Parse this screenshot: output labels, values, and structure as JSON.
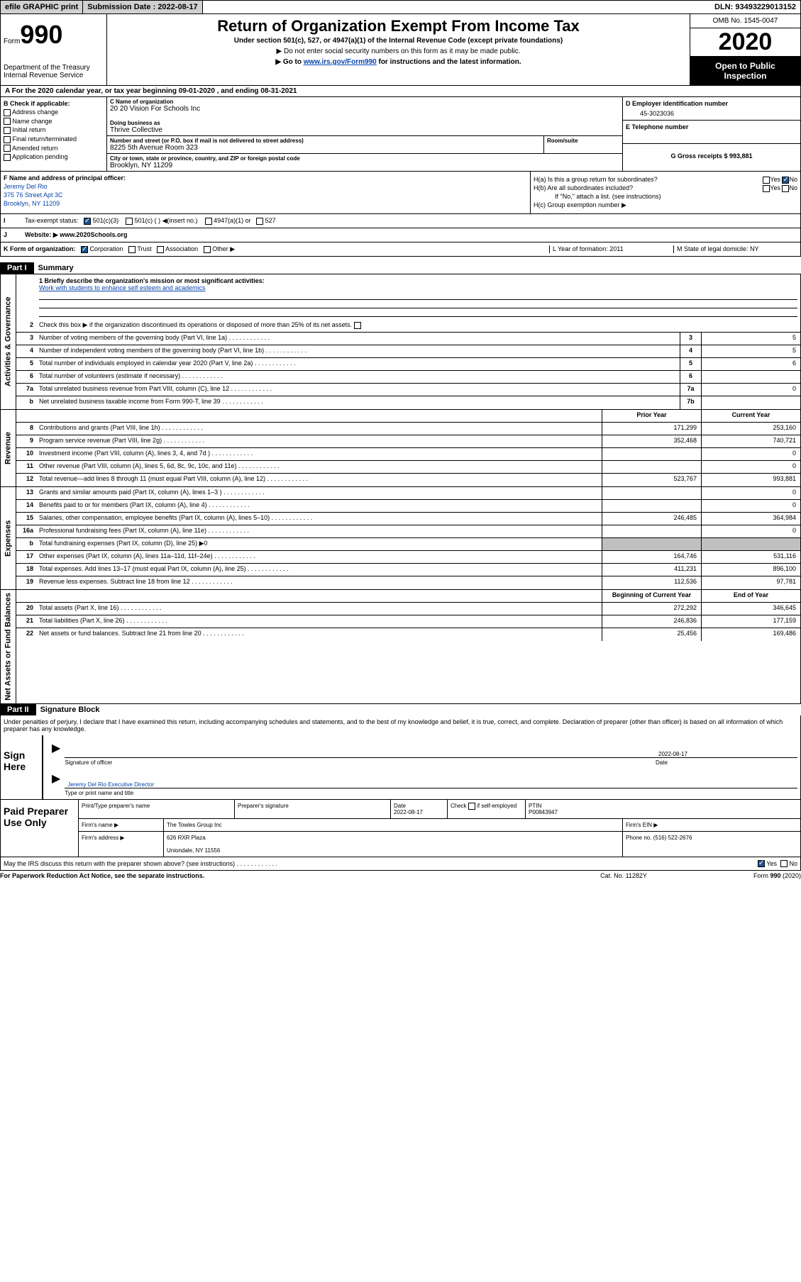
{
  "topbar": {
    "efile": "efile GRAPHIC print",
    "submission_label": "Submission Date : 2022-08-17",
    "dln": "DLN: 93493229013152"
  },
  "header": {
    "form_label": "Form",
    "form_number": "990",
    "dept": "Department of the Treasury Internal Revenue Service",
    "title": "Return of Organization Exempt From Income Tax",
    "subtitle": "Under section 501(c), 527, or 4947(a)(1) of the Internal Revenue Code (except private foundations)",
    "warn1": "▶ Do not enter social security numbers on this form as it may be made public.",
    "warn2_pre": "▶ Go to ",
    "warn2_link": "www.irs.gov/Form990",
    "warn2_post": " for instructions and the latest information.",
    "omb": "OMB No. 1545-0047",
    "year": "2020",
    "open": "Open to Public Inspection"
  },
  "row_a": "A   For the 2020 calendar year, or tax year beginning 09-01-2020    , and ending 08-31-2021",
  "col_b": {
    "header": "B Check if applicable:",
    "items": [
      "Address change",
      "Name change",
      "Initial return",
      "Final return/terminated",
      "Amended return",
      "Application pending"
    ]
  },
  "col_c": {
    "name_label": "C Name of organization",
    "name": "20 20 Vision For Schools Inc",
    "dba_label": "Doing business as",
    "dba": "Thrive Collective",
    "addr_label": "Number and street (or P.O. box if mail is not delivered to street address)",
    "addr": "8225 5th Avenue Room 323",
    "room_label": "Room/suite",
    "city_label": "City or town, state or province, country, and ZIP or foreign postal code",
    "city": "Brooklyn, NY  11209"
  },
  "col_d": {
    "ein_label": "D Employer identification number",
    "ein": "45-3023036",
    "phone_label": "E Telephone number",
    "receipts_label": "G Gross receipts $ 993,881"
  },
  "col_f": {
    "label": "F  Name and address of principal officer:",
    "name": "Jeremy Del Rio",
    "addr1": "375 76 Street Apt 3C",
    "addr2": "Brooklyn, NY  11209"
  },
  "col_h": {
    "ha": "H(a)  Is this a group return for subordinates?",
    "hb": "H(b)  Are all subordinates included?",
    "hb_note": "If \"No,\" attach a list. (see instructions)",
    "hc": "H(c)  Group exemption number ▶",
    "yes": "Yes",
    "no": "No"
  },
  "row_i": {
    "label": "I",
    "text": "Tax-exempt status:",
    "opts": [
      "501(c)(3)",
      "501(c) (  ) ◀(insert no.)",
      "4947(a)(1) or",
      "527"
    ]
  },
  "row_j": {
    "label": "J",
    "text": "Website: ▶  www.2020Schools.org"
  },
  "row_k": {
    "left": "K Form of organization:",
    "opts": [
      "Corporation",
      "Trust",
      "Association",
      "Other ▶"
    ],
    "l": "L Year of formation: 2011",
    "m": "M State of legal domicile: NY"
  },
  "part1": {
    "label": "Part I",
    "title": "Summary",
    "side1": "Activities & Governance",
    "side2": "Revenue",
    "side3": "Expenses",
    "side4": "Net Assets or Fund Balances",
    "line1": "1  Briefly describe the organization's mission or most significant activities:",
    "mission": "Work with students to enhance self esteem and academics",
    "line2": "Check this box ▶     if the organization discontinued its operations or disposed of more than 25% of its net assets.",
    "rows_gov": [
      {
        "n": "3",
        "d": "Number of voting members of the governing body (Part VI, line 1a)",
        "c": "3",
        "v": "5"
      },
      {
        "n": "4",
        "d": "Number of independent voting members of the governing body (Part VI, line 1b)",
        "c": "4",
        "v": "5"
      },
      {
        "n": "5",
        "d": "Total number of individuals employed in calendar year 2020 (Part V, line 2a)",
        "c": "5",
        "v": "6"
      },
      {
        "n": "6",
        "d": "Total number of volunteers (estimate if necessary)",
        "c": "6",
        "v": ""
      },
      {
        "n": "7a",
        "d": "Total unrelated business revenue from Part VIII, column (C), line 12",
        "c": "7a",
        "v": "0"
      },
      {
        "n": "b",
        "d": "Net unrelated business taxable income from Form 990-T, line 39",
        "c": "7b",
        "v": ""
      }
    ],
    "col_headers": {
      "prior": "Prior Year",
      "current": "Current Year"
    },
    "rows_rev": [
      {
        "n": "8",
        "d": "Contributions and grants (Part VIII, line 1h)",
        "p": "171,299",
        "c": "253,160"
      },
      {
        "n": "9",
        "d": "Program service revenue (Part VIII, line 2g)",
        "p": "352,468",
        "c": "740,721"
      },
      {
        "n": "10",
        "d": "Investment income (Part VIII, column (A), lines 3, 4, and 7d )",
        "p": "",
        "c": "0"
      },
      {
        "n": "11",
        "d": "Other revenue (Part VIII, column (A), lines 5, 6d, 8c, 9c, 10c, and 11e)",
        "p": "",
        "c": "0"
      },
      {
        "n": "12",
        "d": "Total revenue—add lines 8 through 11 (must equal Part VIII, column (A), line 12)",
        "p": "523,767",
        "c": "993,881"
      }
    ],
    "rows_exp": [
      {
        "n": "13",
        "d": "Grants and similar amounts paid (Part IX, column (A), lines 1–3 )",
        "p": "",
        "c": "0"
      },
      {
        "n": "14",
        "d": "Benefits paid to or for members (Part IX, column (A), line 4)",
        "p": "",
        "c": "0"
      },
      {
        "n": "15",
        "d": "Salaries, other compensation, employee benefits (Part IX, column (A), lines 5–10)",
        "p": "246,485",
        "c": "364,984"
      },
      {
        "n": "16a",
        "d": "Professional fundraising fees (Part IX, column (A), line 11e)",
        "p": "",
        "c": "0"
      },
      {
        "n": "b",
        "d": "Total fundraising expenses (Part IX, column (D), line 25) ▶0",
        "p": "shaded",
        "c": "shaded"
      },
      {
        "n": "17",
        "d": "Other expenses (Part IX, column (A), lines 11a–11d, 11f–24e)",
        "p": "164,746",
        "c": "531,116"
      },
      {
        "n": "18",
        "d": "Total expenses. Add lines 13–17 (must equal Part IX, column (A), line 25)",
        "p": "411,231",
        "c": "896,100"
      },
      {
        "n": "19",
        "d": "Revenue less expenses. Subtract line 18 from line 12",
        "p": "112,536",
        "c": "97,781"
      }
    ],
    "col_headers2": {
      "prior": "Beginning of Current Year",
      "current": "End of Year"
    },
    "rows_net": [
      {
        "n": "20",
        "d": "Total assets (Part X, line 16)",
        "p": "272,292",
        "c": "346,645"
      },
      {
        "n": "21",
        "d": "Total liabilities (Part X, line 26)",
        "p": "246,836",
        "c": "177,159"
      },
      {
        "n": "22",
        "d": "Net assets or fund balances. Subtract line 21 from line 20",
        "p": "25,456",
        "c": "169,486"
      }
    ]
  },
  "part2": {
    "label": "Part II",
    "title": "Signature Block",
    "text": "Under penalties of perjury, I declare that I have examined this return, including accompanying schedules and statements, and to the best of my knowledge and belief, it is true, correct, and complete. Declaration of preparer (other than officer) is based on all information of which preparer has any knowledge."
  },
  "sign": {
    "label": "Sign Here",
    "sig_officer": "Signature of officer",
    "date": "2022-08-17",
    "date_label": "Date",
    "name": "Jeremy Del Rio  Executive Director",
    "name_label": "Type or print name and title"
  },
  "prep": {
    "label": "Paid Preparer Use Only",
    "h1": "Print/Type preparer's name",
    "h2": "Preparer's signature",
    "h3": "Date",
    "h3v": "2022-08-17",
    "h4": "Check     if self-employed",
    "h5": "PTIN",
    "h5v": "P00843947",
    "firm_name_l": "Firm's name    ▶",
    "firm_name": "The Towles Group Inc",
    "firm_ein_l": "Firm's EIN ▶",
    "firm_addr_l": "Firm's address ▶",
    "firm_addr1": "626 RXR Plaza",
    "firm_addr2": "Uniondale, NY  11556",
    "firm_phone_l": "Phone no. (516) 522-2676"
  },
  "bottom": {
    "q": "May the IRS discuss this return with the preparer shown above? (see instructions)",
    "yes": "Yes",
    "no": "No"
  },
  "footer": {
    "left": "For Paperwork Reduction Act Notice, see the separate instructions.",
    "center": "Cat. No. 11282Y",
    "right": "Form 990 (2020)"
  }
}
